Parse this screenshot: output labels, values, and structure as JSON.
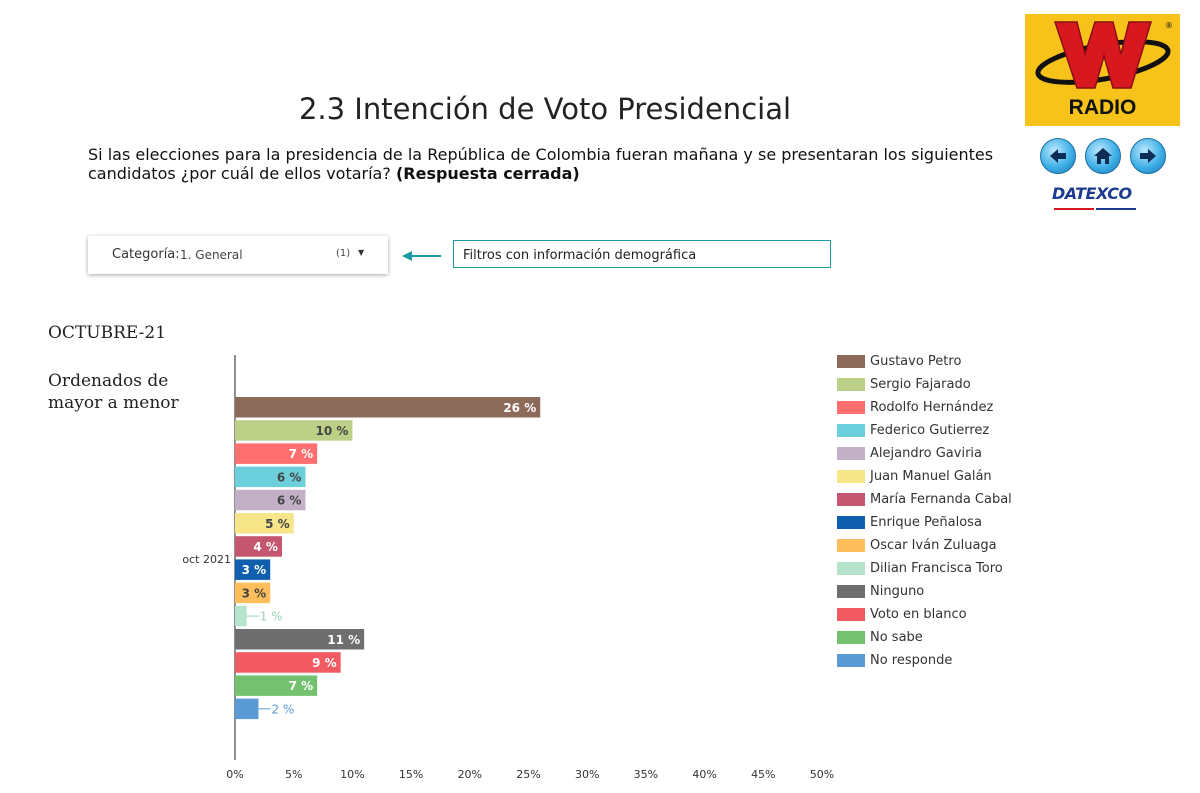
{
  "header": {
    "title": "2.3 Intención de Voto Presidencial",
    "question_text": "Si las elecciones para la presidencia de la República de Colombia fueran mañana y se presentaran los siguientes candidatos ¿por cuál de ellos votaría?",
    "question_emphasis": "(Respuesta cerrada)"
  },
  "logos": {
    "radio_text": "RADIO",
    "datexco_text": "DATEXCO",
    "brand_yellow": "#f7c21a",
    "brand_red": "#d7191f"
  },
  "nav": {
    "back_icon": "arrow-left-icon",
    "home_icon": "home-icon",
    "forward_icon": "arrow-right-icon"
  },
  "filter": {
    "label": "Categoría:",
    "value": "1. General",
    "count": "(1)",
    "caret_icon": "caret-down-icon"
  },
  "annotation": {
    "text": "Filtros con información demográfica",
    "accent": "#1a9aa3"
  },
  "period_label": "OCTUBRE-21",
  "sort_note": "Ordenados de mayor a menor",
  "chart_data": {
    "type": "bar",
    "orientation": "horizontal",
    "category_label": "oct 2021",
    "xlim": [
      0,
      50
    ],
    "x_ticks": [
      "0%",
      "5%",
      "10%",
      "15%",
      "20%",
      "25%",
      "30%",
      "35%",
      "40%",
      "45%",
      "50%"
    ],
    "x_tick_values": [
      0,
      5,
      10,
      15,
      20,
      25,
      30,
      35,
      40,
      45,
      50
    ],
    "grid": false,
    "legend_position": "right",
    "series": [
      {
        "name": "Gustavo Petro",
        "value": 26,
        "label": "26 %",
        "color": "#8c6a5a",
        "label_inside": true,
        "label_color": "#ffffff"
      },
      {
        "name": "Sergio Fajarado",
        "value": 10,
        "label": "10 %",
        "color": "#bcd087",
        "label_inside": true,
        "label_color": "#444444"
      },
      {
        "name": "Rodolfo Hernández",
        "value": 7,
        "label": "7 %",
        "color": "#ff6f6f",
        "label_inside": true,
        "label_color": "#ffffff"
      },
      {
        "name": "Federico Gutierrez",
        "value": 6,
        "label": "6 %",
        "color": "#6ccfdc",
        "label_inside": true,
        "label_color": "#444444"
      },
      {
        "name": "Alejandro Gaviria",
        "value": 6,
        "label": "6 %",
        "color": "#c2b0c6",
        "label_inside": true,
        "label_color": "#444444"
      },
      {
        "name": "Juan Manuel Galán",
        "value": 5,
        "label": "5 %",
        "color": "#f7e58a",
        "label_inside": true,
        "label_color": "#444444"
      },
      {
        "name": "María Fernanda Cabal",
        "value": 4,
        "label": "4 %",
        "color": "#c4566f",
        "label_inside": true,
        "label_color": "#ffffff"
      },
      {
        "name": "Enrique Peñalosa",
        "value": 3,
        "label": "3 %",
        "color": "#0f5fae",
        "label_inside": true,
        "label_color": "#ffffff"
      },
      {
        "name": "Oscar Iván Zuluaga",
        "value": 3,
        "label": "3 %",
        "color": "#ffbe5c",
        "label_inside": true,
        "label_color": "#444444"
      },
      {
        "name": "Dilian Francisca Toro",
        "value": 1,
        "label": "1 %",
        "color": "#b5e3cb",
        "label_inside": false,
        "label_color": "#9bcfb3"
      },
      {
        "name": "Ninguno",
        "value": 11,
        "label": "11 %",
        "color": "#6e6e6e",
        "label_inside": true,
        "label_color": "#ffffff"
      },
      {
        "name": "Voto en blanco",
        "value": 9,
        "label": "9 %",
        "color": "#f25a62",
        "label_inside": true,
        "label_color": "#ffffff"
      },
      {
        "name": "No sabe",
        "value": 7,
        "label": "7 %",
        "color": "#74c26f",
        "label_inside": true,
        "label_color": "#ffffff"
      },
      {
        "name": "No responde",
        "value": 2,
        "label": "2 %",
        "color": "#5b9bd5",
        "label_inside": false,
        "label_color": "#5b9bd5"
      }
    ]
  }
}
